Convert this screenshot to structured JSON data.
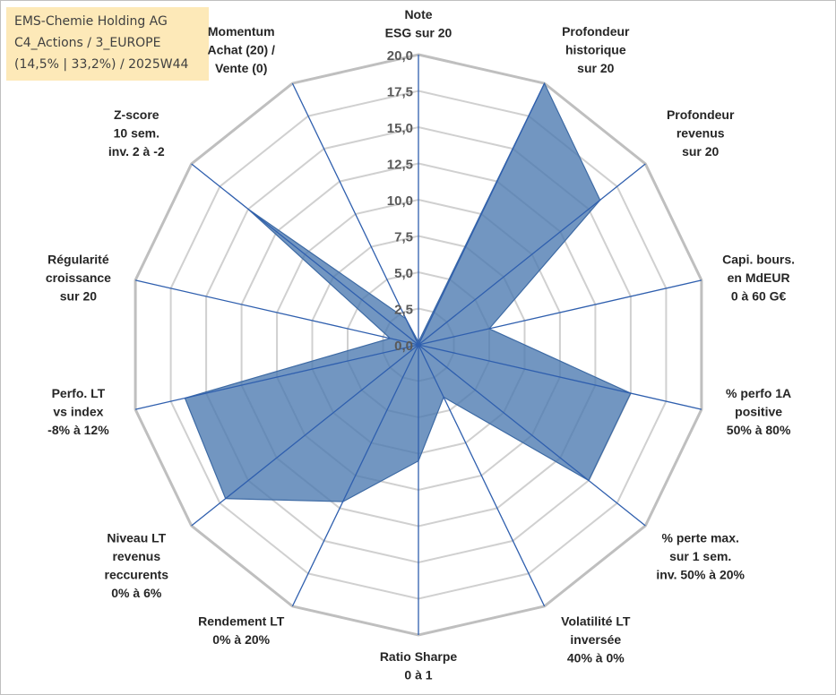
{
  "header": {
    "lines": [
      "EMS-Chemie Holding AG",
      "C4_Actions / 3_EUROPE",
      "(14,5% | 33,2%) / 2025W44"
    ]
  },
  "chart_data": {
    "type": "radar",
    "title": "EMS-Chemie Holding AG",
    "rmin": 0,
    "rmax": 20,
    "tick_step": 2.5,
    "tick_labels": [
      "0,0",
      "2,5",
      "5,0",
      "7,5",
      "10,0",
      "12,5",
      "15,0",
      "17,5",
      "20,0"
    ],
    "series_color": "#4a78b0",
    "axes": [
      {
        "label": [
          "Note",
          "ESG sur 20"
        ],
        "value": 0.2
      },
      {
        "label": [
          "Profondeur",
          "historique",
          "sur 20"
        ],
        "value": 20.0
      },
      {
        "label": [
          "Profondeur",
          "revenus",
          "sur 20"
        ],
        "value": 16.0
      },
      {
        "label": [
          "Capi. bours.",
          "en MdEUR",
          "0 à 60 G€"
        ],
        "value": 5.0
      },
      {
        "label": [
          "% perfo 1A",
          "positive",
          "50% à 80%"
        ],
        "value": 15.0
      },
      {
        "label": [
          "% perte max.",
          "sur 1 sem.",
          "inv. 50% à 20%"
        ],
        "value": 15.0
      },
      {
        "label": [
          "Volatilité LT",
          "inversée",
          "40% à 0%"
        ],
        "value": 4.0
      },
      {
        "label": [
          "Ratio Sharpe",
          "0 à 1"
        ],
        "value": 8.0
      },
      {
        "label": [
          "Rendement LT",
          "0% à 20%"
        ],
        "value": 12.0
      },
      {
        "label": [
          "Niveau LT",
          "revenus",
          "reccurents",
          "0% à 6%"
        ],
        "value": 17.0
      },
      {
        "label": [
          "Perfo. LT",
          "vs index",
          "-8% à 12%"
        ],
        "value": 16.5
      },
      {
        "label": [
          "Régularité",
          "croissance",
          "sur 20"
        ],
        "value": 2.0
      },
      {
        "label": [
          "Z-score",
          "10 sem.",
          "inv. 2 à -2"
        ],
        "value": 15.0
      },
      {
        "label": [
          "Momentum",
          "Achat (20) /",
          "Vente (0)"
        ],
        "value": 2.0
      }
    ]
  }
}
